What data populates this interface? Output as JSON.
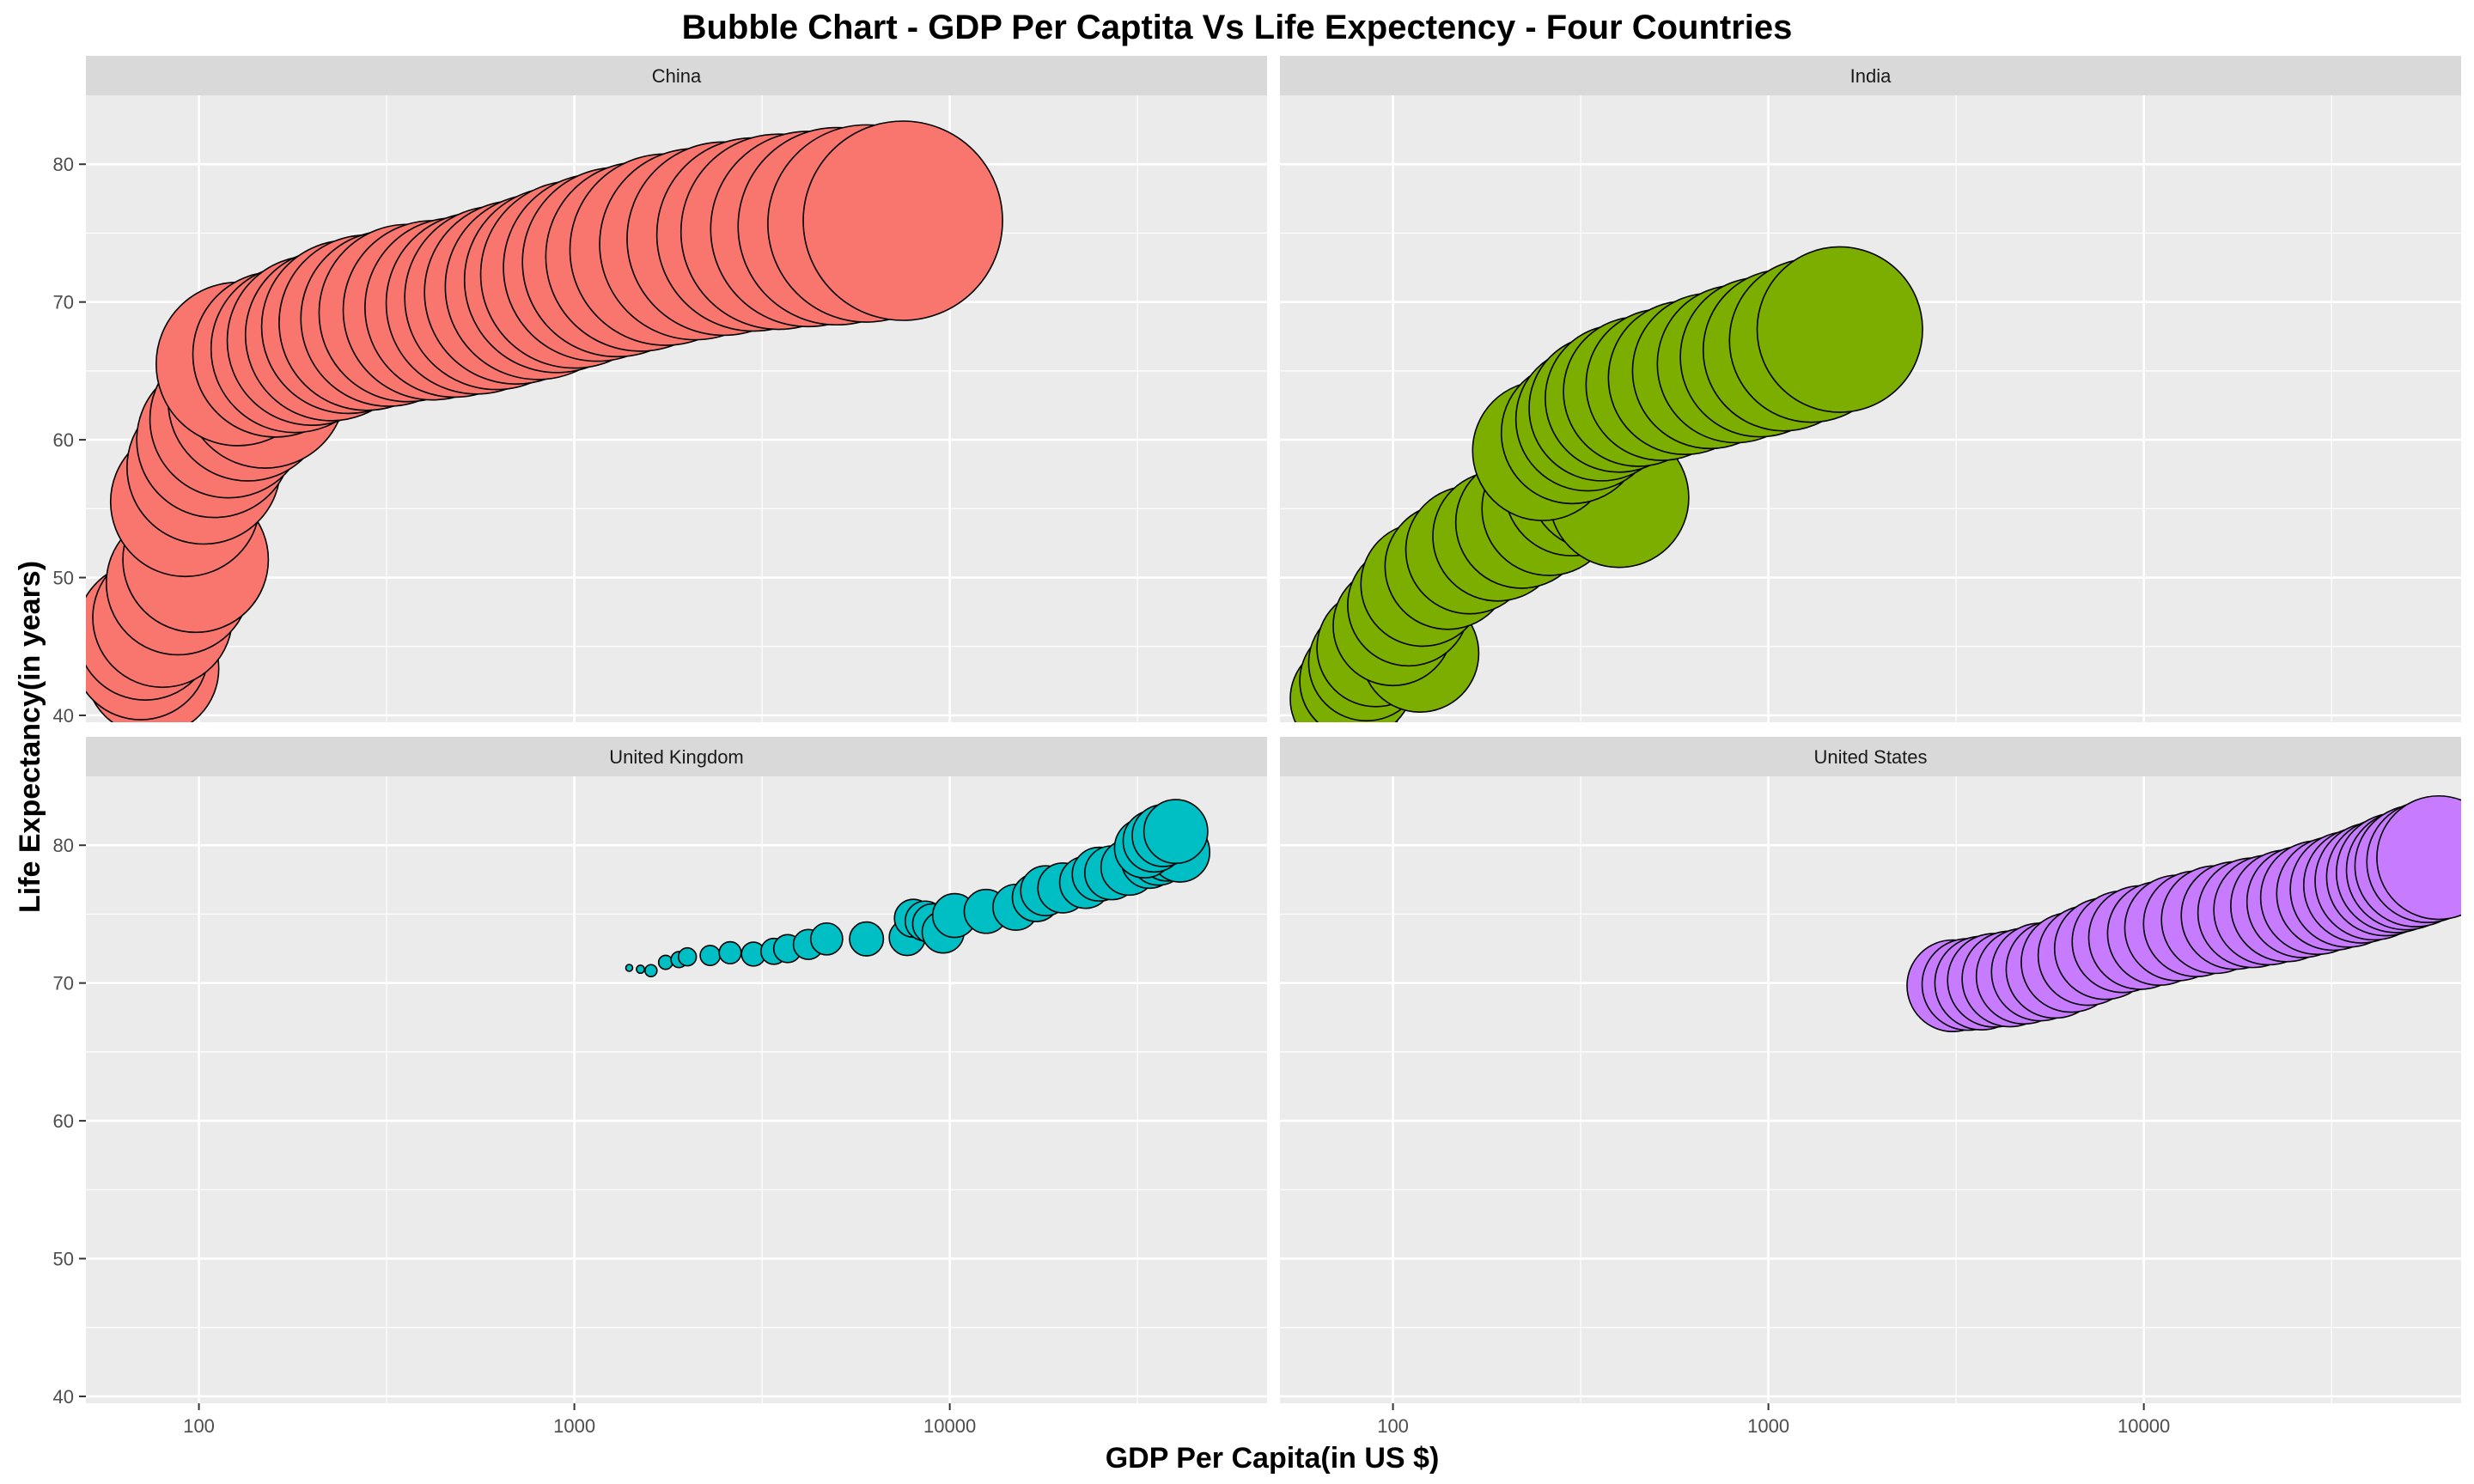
{
  "chart_data": {
    "type": "scatter",
    "subtype": "bubble, faceted 2x2",
    "title": "Bubble Chart - GDP Per Captita Vs Life Expectency - Four Countries",
    "xlabel": "GDP Per Capita(in US $)",
    "ylabel": "Life Expectancy(in years)",
    "x_scale": "log10",
    "xlim": [
      50,
      70000
    ],
    "ylim": [
      39.5,
      85
    ],
    "x_ticks": [
      100,
      1000,
      10000
    ],
    "x_tick_labels": [
      "100",
      "1000",
      "10000"
    ],
    "y_ticks": [
      40,
      50,
      60,
      70,
      80
    ],
    "y_tick_labels": [
      "40",
      "50",
      "60",
      "70",
      "80"
    ],
    "grid": true,
    "legend": "none",
    "size_meaning": "population",
    "panels": [
      {
        "name": "China",
        "color": "#F8766D",
        "points": [
          {
            "x": 75,
            "y": 43.4,
            "s": 0.67
          },
          {
            "x": 70,
            "y": 44.6,
            "s": 0.68
          },
          {
            "x": 72,
            "y": 46.1,
            "s": 0.69
          },
          {
            "x": 80,
            "y": 47.1,
            "s": 0.7
          },
          {
            "x": 88,
            "y": 49.6,
            "s": 0.72
          },
          {
            "x": 98,
            "y": 51.3,
            "s": 0.73
          },
          {
            "x": 92,
            "y": 55.5,
            "s": 0.75
          },
          {
            "x": 103,
            "y": 58.0,
            "s": 0.77
          },
          {
            "x": 110,
            "y": 60.0,
            "s": 0.78
          },
          {
            "x": 120,
            "y": 61.5,
            "s": 0.79
          },
          {
            "x": 135,
            "y": 62.8,
            "s": 0.8
          },
          {
            "x": 150,
            "y": 63.8,
            "s": 0.81
          },
          {
            "x": 127,
            "y": 65.5,
            "s": 0.82
          },
          {
            "x": 160,
            "y": 66.2,
            "s": 0.83
          },
          {
            "x": 180,
            "y": 66.6,
            "s": 0.84
          },
          {
            "x": 200,
            "y": 67.2,
            "s": 0.85
          },
          {
            "x": 225,
            "y": 67.6,
            "s": 0.86
          },
          {
            "x": 250,
            "y": 68.2,
            "s": 0.87
          },
          {
            "x": 280,
            "y": 68.5,
            "s": 0.88
          },
          {
            "x": 320,
            "y": 68.8,
            "s": 0.88
          },
          {
            "x": 360,
            "y": 69.2,
            "s": 0.89
          },
          {
            "x": 420,
            "y": 69.4,
            "s": 0.9
          },
          {
            "x": 480,
            "y": 69.6,
            "s": 0.9
          },
          {
            "x": 550,
            "y": 69.9,
            "s": 0.91
          },
          {
            "x": 620,
            "y": 70.3,
            "s": 0.92
          },
          {
            "x": 700,
            "y": 70.7,
            "s": 0.92
          },
          {
            "x": 800,
            "y": 71.1,
            "s": 0.93
          },
          {
            "x": 900,
            "y": 71.6,
            "s": 0.93
          },
          {
            "x": 1000,
            "y": 72.0,
            "s": 0.94
          },
          {
            "x": 1150,
            "y": 72.5,
            "s": 0.94
          },
          {
            "x": 1300,
            "y": 72.9,
            "s": 0.95
          },
          {
            "x": 1500,
            "y": 73.3,
            "s": 0.95
          },
          {
            "x": 1750,
            "y": 73.8,
            "s": 0.96
          },
          {
            "x": 2100,
            "y": 74.2,
            "s": 0.96
          },
          {
            "x": 2500,
            "y": 74.6,
            "s": 0.97
          },
          {
            "x": 3000,
            "y": 74.9,
            "s": 0.97
          },
          {
            "x": 3500,
            "y": 75.1,
            "s": 0.98
          },
          {
            "x": 4200,
            "y": 75.3,
            "s": 0.98
          },
          {
            "x": 5000,
            "y": 75.5,
            "s": 0.99
          },
          {
            "x": 6000,
            "y": 75.7,
            "s": 0.99
          },
          {
            "x": 7500,
            "y": 75.9,
            "s": 1.0
          }
        ]
      },
      {
        "name": "India",
        "color": "#7CAE00",
        "points": [
          {
            "x": 75,
            "y": 41.2,
            "s": 0.56
          },
          {
            "x": 80,
            "y": 42.5,
            "s": 0.57
          },
          {
            "x": 85,
            "y": 43.8,
            "s": 0.58
          },
          {
            "x": 90,
            "y": 44.9,
            "s": 0.59
          },
          {
            "x": 118,
            "y": 44.5,
            "s": 0.59
          },
          {
            "x": 100,
            "y": 46.5,
            "s": 0.6
          },
          {
            "x": 110,
            "y": 48.0,
            "s": 0.61
          },
          {
            "x": 120,
            "y": 49.5,
            "s": 0.62
          },
          {
            "x": 140,
            "y": 50.8,
            "s": 0.63
          },
          {
            "x": 160,
            "y": 52.0,
            "s": 0.64
          },
          {
            "x": 190,
            "y": 53.0,
            "s": 0.65
          },
          {
            "x": 220,
            "y": 54.0,
            "s": 0.66
          },
          {
            "x": 260,
            "y": 55.0,
            "s": 0.67
          },
          {
            "x": 300,
            "y": 56.5,
            "s": 0.68
          },
          {
            "x": 350,
            "y": 57.0,
            "s": 0.69
          },
          {
            "x": 400,
            "y": 55.8,
            "s": 0.7
          },
          {
            "x": 250,
            "y": 59.2,
            "s": 0.7
          },
          {
            "x": 300,
            "y": 60.5,
            "s": 0.71
          },
          {
            "x": 330,
            "y": 61.5,
            "s": 0.72
          },
          {
            "x": 360,
            "y": 62.3,
            "s": 0.73
          },
          {
            "x": 400,
            "y": 63.0,
            "s": 0.74
          },
          {
            "x": 450,
            "y": 63.5,
            "s": 0.75
          },
          {
            "x": 520,
            "y": 64.0,
            "s": 0.76
          },
          {
            "x": 600,
            "y": 64.5,
            "s": 0.77
          },
          {
            "x": 700,
            "y": 65.0,
            "s": 0.78
          },
          {
            "x": 820,
            "y": 65.5,
            "s": 0.79
          },
          {
            "x": 950,
            "y": 66.0,
            "s": 0.8
          },
          {
            "x": 1100,
            "y": 66.5,
            "s": 0.81
          },
          {
            "x": 1300,
            "y": 67.2,
            "s": 0.82
          },
          {
            "x": 1550,
            "y": 68.0,
            "s": 0.83
          }
        ]
      },
      {
        "name": "United Kingdom",
        "color": "#00BFC4",
        "points": [
          {
            "x": 1400,
            "y": 71.1,
            "s": 0.02
          },
          {
            "x": 1500,
            "y": 71.0,
            "s": 0.04
          },
          {
            "x": 1600,
            "y": 70.9,
            "s": 0.06
          },
          {
            "x": 1750,
            "y": 71.5,
            "s": 0.07
          },
          {
            "x": 1900,
            "y": 71.7,
            "s": 0.08
          },
          {
            "x": 2000,
            "y": 71.9,
            "s": 0.09
          },
          {
            "x": 2300,
            "y": 72.0,
            "s": 0.1
          },
          {
            "x": 2600,
            "y": 72.2,
            "s": 0.11
          },
          {
            "x": 3000,
            "y": 72.1,
            "s": 0.12
          },
          {
            "x": 3400,
            "y": 72.3,
            "s": 0.13
          },
          {
            "x": 3700,
            "y": 72.5,
            "s": 0.14
          },
          {
            "x": 4200,
            "y": 72.8,
            "s": 0.15
          },
          {
            "x": 4700,
            "y": 73.2,
            "s": 0.16
          },
          {
            "x": 6000,
            "y": 73.2,
            "s": 0.17
          },
          {
            "x": 7700,
            "y": 73.3,
            "s": 0.18
          },
          {
            "x": 8000,
            "y": 74.7,
            "s": 0.19
          },
          {
            "x": 8600,
            "y": 74.5,
            "s": 0.2
          },
          {
            "x": 9000,
            "y": 74.3,
            "s": 0.2
          },
          {
            "x": 9600,
            "y": 73.7,
            "s": 0.21
          },
          {
            "x": 10300,
            "y": 74.9,
            "s": 0.22
          },
          {
            "x": 12500,
            "y": 75.2,
            "s": 0.22
          },
          {
            "x": 15000,
            "y": 75.5,
            "s": 0.23
          },
          {
            "x": 17000,
            "y": 76.2,
            "s": 0.24
          },
          {
            "x": 18000,
            "y": 76.7,
            "s": 0.25
          },
          {
            "x": 20000,
            "y": 76.9,
            "s": 0.25
          },
          {
            "x": 23000,
            "y": 77.3,
            "s": 0.26
          },
          {
            "x": 25000,
            "y": 77.9,
            "s": 0.27
          },
          {
            "x": 27000,
            "y": 78.0,
            "s": 0.27
          },
          {
            "x": 30000,
            "y": 78.4,
            "s": 0.28
          },
          {
            "x": 34000,
            "y": 78.9,
            "s": 0.28
          },
          {
            "x": 36000,
            "y": 79.2,
            "s": 0.29
          },
          {
            "x": 38000,
            "y": 79.5,
            "s": 0.29
          },
          {
            "x": 41000,
            "y": 79.5,
            "s": 0.3
          },
          {
            "x": 33000,
            "y": 79.8,
            "s": 0.3
          },
          {
            "x": 35000,
            "y": 80.3,
            "s": 0.31
          },
          {
            "x": 37000,
            "y": 80.7,
            "s": 0.31
          },
          {
            "x": 40000,
            "y": 81.0,
            "s": 0.32
          }
        ]
      },
      {
        "name": "United States",
        "color": "#C77CFF",
        "points": [
          {
            "x": 3100,
            "y": 69.8,
            "s": 0.46
          },
          {
            "x": 3400,
            "y": 69.9,
            "s": 0.46
          },
          {
            "x": 3700,
            "y": 70.0,
            "s": 0.47
          },
          {
            "x": 4000,
            "y": 70.2,
            "s": 0.47
          },
          {
            "x": 4400,
            "y": 70.3,
            "s": 0.48
          },
          {
            "x": 4800,
            "y": 70.5,
            "s": 0.48
          },
          {
            "x": 5300,
            "y": 70.8,
            "s": 0.49
          },
          {
            "x": 5800,
            "y": 71.0,
            "s": 0.49
          },
          {
            "x": 6400,
            "y": 71.5,
            "s": 0.5
          },
          {
            "x": 7100,
            "y": 72.0,
            "s": 0.5
          },
          {
            "x": 7900,
            "y": 72.5,
            "s": 0.51
          },
          {
            "x": 8800,
            "y": 73.0,
            "s": 0.51
          },
          {
            "x": 9800,
            "y": 73.3,
            "s": 0.52
          },
          {
            "x": 11000,
            "y": 73.6,
            "s": 0.52
          },
          {
            "x": 12300,
            "y": 74.0,
            "s": 0.53
          },
          {
            "x": 13800,
            "y": 74.3,
            "s": 0.53
          },
          {
            "x": 15500,
            "y": 74.6,
            "s": 0.54
          },
          {
            "x": 17500,
            "y": 74.9,
            "s": 0.54
          },
          {
            "x": 19500,
            "y": 75.1,
            "s": 0.55
          },
          {
            "x": 21500,
            "y": 75.3,
            "s": 0.55
          },
          {
            "x": 24000,
            "y": 75.6,
            "s": 0.56
          },
          {
            "x": 26500,
            "y": 75.9,
            "s": 0.56
          },
          {
            "x": 29000,
            "y": 76.2,
            "s": 0.57
          },
          {
            "x": 32000,
            "y": 76.5,
            "s": 0.57
          },
          {
            "x": 35000,
            "y": 76.8,
            "s": 0.58
          },
          {
            "x": 38000,
            "y": 77.1,
            "s": 0.58
          },
          {
            "x": 41000,
            "y": 77.4,
            "s": 0.59
          },
          {
            "x": 44000,
            "y": 77.7,
            "s": 0.59
          },
          {
            "x": 47000,
            "y": 78.0,
            "s": 0.6
          },
          {
            "x": 50000,
            "y": 78.2,
            "s": 0.6
          },
          {
            "x": 53000,
            "y": 78.5,
            "s": 0.61
          },
          {
            "x": 57000,
            "y": 78.8,
            "s": 0.61
          },
          {
            "x": 61000,
            "y": 79.1,
            "s": 0.62
          }
        ]
      }
    ]
  }
}
